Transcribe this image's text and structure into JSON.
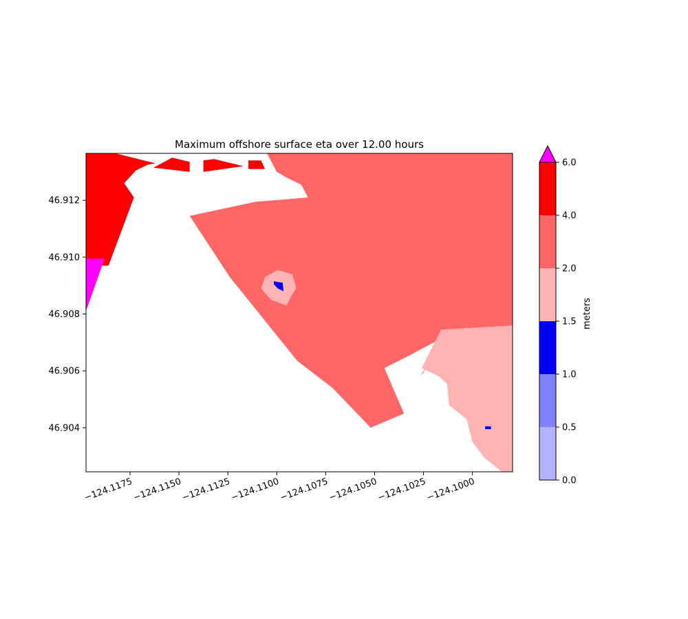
{
  "chart_data": {
    "type": "heatmap",
    "title": "Maximum offshore surface eta over 12.00 hours",
    "xlabel": "",
    "ylabel": "",
    "xlim": [
      -124.11975,
      -124.09795
    ],
    "ylim": [
      46.90245,
      46.91365
    ],
    "x_ticks": [
      -124.1175,
      -124.115,
      -124.1125,
      -124.11,
      -124.1075,
      -124.105,
      -124.1025,
      -124.1
    ],
    "x_tick_labels": [
      "−124.1175",
      "−124.1150",
      "−124.1125",
      "−124.1100",
      "−124.1075",
      "−124.1050",
      "−124.1025",
      "−124.1000"
    ],
    "y_ticks": [
      46.904,
      46.906,
      46.908,
      46.91,
      46.912
    ],
    "y_tick_labels": [
      "46.904",
      "46.906",
      "46.908",
      "46.910",
      "46.912"
    ],
    "grid": false,
    "colorbar": {
      "label": "meters",
      "levels": [
        0.0,
        0.5,
        1.0,
        1.5,
        2.0,
        4.0,
        6.0
      ],
      "tick_labels": [
        "0.0",
        "0.5",
        "1.0",
        "1.5",
        "2.0",
        "4.0",
        "6.0"
      ],
      "colors": [
        "#b3b3ff",
        "#8080ff",
        "#0000ff",
        "#ffb3b3",
        "#ff6666",
        "#ff0000"
      ],
      "over_color": "#ff00ff",
      "extend": "max"
    },
    "regions": [
      {
        "band": "2.0-4.0",
        "color": "#ff6666",
        "points": [
          [
            -124.1105,
            46.91365
          ],
          [
            -124.09795,
            46.91365
          ],
          [
            -124.09795,
            46.90745
          ],
          [
            -124.1013,
            46.90725
          ],
          [
            -124.1032,
            46.90655
          ],
          [
            -124.1045,
            46.9061
          ],
          [
            -124.1035,
            46.9045
          ],
          [
            -124.1052,
            46.904
          ],
          [
            -124.10715,
            46.9054
          ],
          [
            -124.10895,
            46.90635
          ],
          [
            -124.1124,
            46.9093
          ],
          [
            -124.11445,
            46.91145
          ],
          [
            -124.11105,
            46.91195
          ],
          [
            -124.1084,
            46.9121
          ],
          [
            -124.10875,
            46.91255
          ],
          [
            -124.1095,
            46.9128
          ],
          [
            -124.11,
            46.913
          ]
        ]
      },
      {
        "band": "1.5-2.0",
        "color": "#ffb3b3",
        "points": [
          [
            -124.1106,
            46.9093
          ],
          [
            -124.10995,
            46.90955
          ],
          [
            -124.1092,
            46.9094
          ],
          [
            -124.109,
            46.9089
          ],
          [
            -124.1092,
            46.9087
          ],
          [
            -124.1095,
            46.9083
          ],
          [
            -124.1103,
            46.9085
          ],
          [
            -124.1108,
            46.9089
          ]
        ]
      },
      {
        "band": "1.5-2.0",
        "color": "#ffb3b3",
        "points": [
          [
            -124.1026,
            46.9061
          ],
          [
            -124.1016,
            46.90745
          ],
          [
            -124.09795,
            46.9076
          ],
          [
            -124.09795,
            46.90245
          ],
          [
            -124.0985,
            46.90245
          ],
          [
            -124.0994,
            46.90295
          ],
          [
            -124.1,
            46.9035
          ],
          [
            -124.1003,
            46.9043
          ],
          [
            -124.1012,
            46.9048
          ],
          [
            -124.1013,
            46.90555
          ],
          [
            -124.1017,
            46.9058
          ]
        ]
      },
      {
        "band": "1.5-2.0",
        "color": "#ffb3b3",
        "points": [
          [
            -124.10235,
            46.9062
          ],
          [
            -124.10265,
            46.90585
          ],
          [
            -124.1025,
            46.9059
          ]
        ]
      },
      {
        "band": "1.0-1.5",
        "color": "#0000ff",
        "points": [
          [
            -124.11015,
            46.90915
          ],
          [
            -124.1097,
            46.9091
          ],
          [
            -124.10965,
            46.9088
          ],
          [
            -124.10995,
            46.9089
          ],
          [
            -124.11015,
            46.90905
          ]
        ]
      },
      {
        "band": "1.0-1.5",
        "color": "#0000ff",
        "points": [
          [
            -124.09935,
            46.90405
          ],
          [
            -124.09905,
            46.90405
          ],
          [
            -124.09905,
            46.90395
          ],
          [
            -124.09935,
            46.90395
          ]
        ]
      },
      {
        "band": "4.0-6.0",
        "color": "#ff0000",
        "points": [
          [
            -124.11975,
            46.91365
          ],
          [
            -124.11825,
            46.91365
          ],
          [
            -124.1162,
            46.9133
          ],
          [
            -124.1166,
            46.91325
          ],
          [
            -124.1172,
            46.91305
          ],
          [
            -124.1178,
            46.9126
          ],
          [
            -124.1173,
            46.9121
          ],
          [
            -124.1186,
            46.9097
          ],
          [
            -124.11975,
            46.9097
          ]
        ]
      },
      {
        "band": "4.0-6.0",
        "color": "#ff0000",
        "points": [
          [
            -124.11445,
            46.91335
          ],
          [
            -124.11535,
            46.9135
          ],
          [
            -124.1163,
            46.91315
          ],
          [
            -124.11445,
            46.913
          ]
        ]
      },
      {
        "band": "4.0-6.0",
        "color": "#ff0000",
        "points": [
          [
            -124.11375,
            46.9134
          ],
          [
            -124.1132,
            46.91345
          ],
          [
            -124.1117,
            46.9132
          ],
          [
            -124.11375,
            46.913
          ]
        ]
      },
      {
        "band": "4.0-6.0",
        "color": "#ff0000",
        "points": [
          [
            -124.11145,
            46.9134
          ],
          [
            -124.1108,
            46.9134
          ],
          [
            -124.1106,
            46.9131
          ],
          [
            -124.11145,
            46.9131
          ]
        ]
      },
      {
        "band": "above 6.0",
        "color": "#ff00ff",
        "points": [
          [
            -124.11975,
            46.9081
          ],
          [
            -124.1188,
            46.90995
          ],
          [
            -124.1185,
            46.90995
          ],
          [
            -124.11975,
            46.90995
          ]
        ]
      }
    ]
  }
}
